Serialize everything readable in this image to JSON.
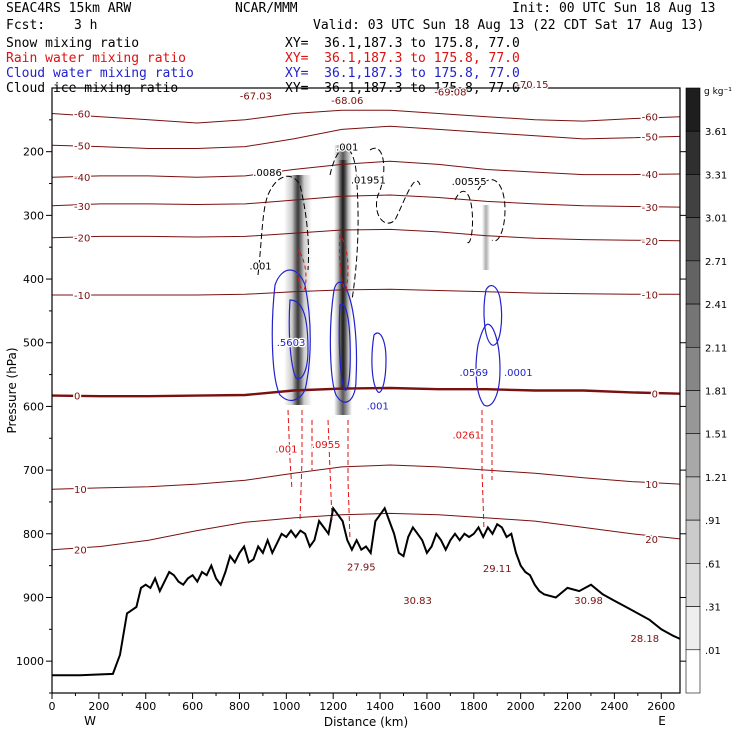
{
  "header": {
    "model": "SEAC4RS 15km ARW",
    "fcst_label": "Fcst:",
    "fcst_value": "3 h",
    "center": "NCAR/MMM",
    "init": "Init: 00 UTC Sun 18 Aug 13",
    "valid": "Valid: 03 UTC Sun 18 Aug 13 (22 CDT Sat 17 Aug 13)"
  },
  "fields": [
    {
      "label": "Snow mixing ratio",
      "xy": "XY=  36.1,187.3 to 175.8, 77.0",
      "color": "#000000"
    },
    {
      "label": "Rain water mixing ratio",
      "xy": "XY=  36.1,187.3 to 175.8, 77.0",
      "color": "#dd1111"
    },
    {
      "label": "Cloud water mixing ratio",
      "xy": "XY=  36.1,187.3 to 175.8, 77.0",
      "color": "#2222cc"
    },
    {
      "label": "Cloud ice mixing ratio",
      "xy": "XY=  36.1,187.3 to 175.8, 77.0",
      "color": "#000000"
    }
  ],
  "chart_data": {
    "type": "cross-section",
    "xlabel": "Distance (km)",
    "ylabel": "Pressure (hPa)",
    "xlim": [
      0,
      2680
    ],
    "ylim": [
      1050,
      100
    ],
    "x_ticks": [
      0,
      200,
      400,
      600,
      800,
      1000,
      1200,
      1400,
      1600,
      1800,
      2000,
      2200,
      2400,
      2600
    ],
    "y_ticks": [
      200,
      300,
      400,
      500,
      600,
      700,
      800,
      900,
      1000
    ],
    "y_tick_labels": [
      "200",
      "300",
      "400",
      "500",
      "600",
      "700",
      "800",
      "900",
      "1000"
    ],
    "west_label": "W",
    "east_label": "E",
    "colorbar": {
      "unit": "g kg⁻¹",
      "levels": [
        "3.61",
        "3.31",
        "3.01",
        "2.71",
        "2.41",
        "2.11",
        "1.81",
        "1.51",
        "1.21",
        ".91",
        ".61",
        ".31",
        ".01"
      ]
    },
    "terrain": [
      [
        0,
        1022
      ],
      [
        120,
        1022
      ],
      [
        260,
        1020
      ],
      [
        290,
        990
      ],
      [
        320,
        925
      ],
      [
        360,
        915
      ],
      [
        380,
        885
      ],
      [
        400,
        880
      ],
      [
        420,
        885
      ],
      [
        440,
        870
      ],
      [
        460,
        890
      ],
      [
        480,
        875
      ],
      [
        500,
        860
      ],
      [
        520,
        865
      ],
      [
        540,
        875
      ],
      [
        560,
        880
      ],
      [
        580,
        870
      ],
      [
        600,
        865
      ],
      [
        620,
        875
      ],
      [
        640,
        860
      ],
      [
        660,
        865
      ],
      [
        680,
        850
      ],
      [
        700,
        870
      ],
      [
        720,
        880
      ],
      [
        740,
        860
      ],
      [
        760,
        835
      ],
      [
        780,
        845
      ],
      [
        800,
        830
      ],
      [
        820,
        820
      ],
      [
        840,
        845
      ],
      [
        860,
        840
      ],
      [
        880,
        820
      ],
      [
        900,
        830
      ],
      [
        920,
        810
      ],
      [
        940,
        830
      ],
      [
        960,
        815
      ],
      [
        980,
        800
      ],
      [
        1000,
        805
      ],
      [
        1020,
        795
      ],
      [
        1040,
        805
      ],
      [
        1060,
        795
      ],
      [
        1080,
        800
      ],
      [
        1100,
        820
      ],
      [
        1120,
        810
      ],
      [
        1140,
        780
      ],
      [
        1160,
        790
      ],
      [
        1180,
        800
      ],
      [
        1200,
        760
      ],
      [
        1220,
        770
      ],
      [
        1240,
        780
      ],
      [
        1260,
        810
      ],
      [
        1280,
        825
      ],
      [
        1300,
        810
      ],
      [
        1320,
        825
      ],
      [
        1340,
        820
      ],
      [
        1360,
        830
      ],
      [
        1380,
        780
      ],
      [
        1400,
        770
      ],
      [
        1420,
        760
      ],
      [
        1440,
        780
      ],
      [
        1460,
        800
      ],
      [
        1480,
        830
      ],
      [
        1500,
        835
      ],
      [
        1520,
        805
      ],
      [
        1540,
        790
      ],
      [
        1560,
        800
      ],
      [
        1580,
        810
      ],
      [
        1600,
        830
      ],
      [
        1620,
        820
      ],
      [
        1640,
        800
      ],
      [
        1660,
        810
      ],
      [
        1680,
        825
      ],
      [
        1700,
        810
      ],
      [
        1720,
        800
      ],
      [
        1740,
        810
      ],
      [
        1760,
        800
      ],
      [
        1780,
        805
      ],
      [
        1800,
        800
      ],
      [
        1820,
        790
      ],
      [
        1840,
        805
      ],
      [
        1860,
        790
      ],
      [
        1880,
        800
      ],
      [
        1900,
        785
      ],
      [
        1920,
        790
      ],
      [
        1940,
        805
      ],
      [
        1960,
        800
      ],
      [
        1980,
        830
      ],
      [
        2000,
        850
      ],
      [
        2020,
        860
      ],
      [
        2040,
        865
      ],
      [
        2060,
        880
      ],
      [
        2080,
        890
      ],
      [
        2100,
        895
      ],
      [
        2150,
        900
      ],
      [
        2200,
        885
      ],
      [
        2250,
        890
      ],
      [
        2300,
        880
      ],
      [
        2350,
        895
      ],
      [
        2400,
        905
      ],
      [
        2450,
        915
      ],
      [
        2500,
        925
      ],
      [
        2550,
        935
      ],
      [
        2600,
        950
      ],
      [
        2650,
        960
      ],
      [
        2680,
        965
      ]
    ],
    "temperature_contours": [
      {
        "label": "-60",
        "p": [
          140,
          145,
          150,
          155,
          150,
          140,
          135,
          135,
          140,
          145,
          150,
          152,
          148,
          145
        ]
      },
      {
        "label": "-50",
        "p": [
          190,
          192,
          195,
          195,
          192,
          180,
          165,
          160,
          165,
          170,
          175,
          180,
          178,
          176
        ]
      },
      {
        "label": "-40",
        "p": [
          240,
          238,
          238,
          240,
          238,
          228,
          220,
          215,
          220,
          228,
          232,
          236,
          236,
          235
        ]
      },
      {
        "label": "-30",
        "p": [
          285,
          282,
          282,
          283,
          282,
          276,
          270,
          268,
          272,
          278,
          282,
          285,
          286,
          287
        ]
      },
      {
        "label": "-20",
        "p": [
          335,
          333,
          333,
          334,
          333,
          328,
          323,
          322,
          326,
          332,
          336,
          338,
          339,
          340
        ]
      },
      {
        "label": "-10",
        "p": [
          425,
          425,
          425,
          425,
          424,
          420,
          417,
          416,
          418,
          420,
          422,
          423,
          424,
          424
        ]
      },
      {
        "label": "0",
        "p": [
          583,
          584,
          584,
          583,
          582,
          575,
          572,
          571,
          573,
          573,
          575,
          575,
          578,
          580
        ]
      },
      {
        "label": "10",
        "p": [
          730,
          728,
          726,
          722,
          716,
          705,
          695,
          692,
          695,
          700,
          705,
          712,
          718,
          722
        ]
      },
      {
        "label": "20",
        "p": [
          825,
          820,
          810,
          795,
          782,
          775,
          770,
          768,
          770,
          775,
          780,
          790,
          800,
          808
        ]
      }
    ],
    "annotations": [
      {
        "text": "-67.03",
        "x": 870,
        "p": 118,
        "color": "#7a1010"
      },
      {
        "text": "-68.06",
        "x": 1260,
        "p": 125,
        "color": "#7a1010"
      },
      {
        "text": "-69.08",
        "x": 1700,
        "p": 112,
        "color": "#7a1010"
      },
      {
        "text": "-70.15",
        "x": 2050,
        "p": 100,
        "color": "#7a1010"
      },
      {
        "text": ".0086",
        "x": 920,
        "p": 238,
        "color": "#000000"
      },
      {
        "text": ".01951",
        "x": 1350,
        "p": 250,
        "color": "#000000"
      },
      {
        "text": ".00555",
        "x": 1780,
        "p": 252,
        "color": "#000000"
      },
      {
        "text": ".001",
        "x": 1260,
        "p": 198,
        "color": "#000000"
      },
      {
        "text": ".001",
        "x": 890,
        "p": 385,
        "color": "#000000"
      },
      {
        "text": ".5603",
        "x": 1020,
        "p": 505,
        "color": "#2222cc"
      },
      {
        "text": ".0569",
        "x": 1800,
        "p": 552,
        "color": "#2222cc"
      },
      {
        "text": ".0001",
        "x": 1990,
        "p": 552,
        "color": "#2222cc"
      },
      {
        "text": ".001",
        "x": 1390,
        "p": 605,
        "color": "#2222cc"
      },
      {
        "text": ".0955",
        "x": 1170,
        "p": 665,
        "color": "#dd1111"
      },
      {
        "text": ".0261",
        "x": 1770,
        "p": 650,
        "color": "#dd1111"
      },
      {
        "text": ".001",
        "x": 1000,
        "p": 672,
        "color": "#dd1111"
      },
      {
        "text": "27.95",
        "x": 1320,
        "p": 858,
        "color": "#7a1010"
      },
      {
        "text": "30.83",
        "x": 1560,
        "p": 910,
        "color": "#7a1010"
      },
      {
        "text": "29.11",
        "x": 1900,
        "p": 860,
        "color": "#7a1010"
      },
      {
        "text": "30.98",
        "x": 2290,
        "p": 910,
        "color": "#7a1010"
      },
      {
        "text": "28.18",
        "x": 2530,
        "p": 970,
        "color": "#7a1010"
      }
    ]
  }
}
